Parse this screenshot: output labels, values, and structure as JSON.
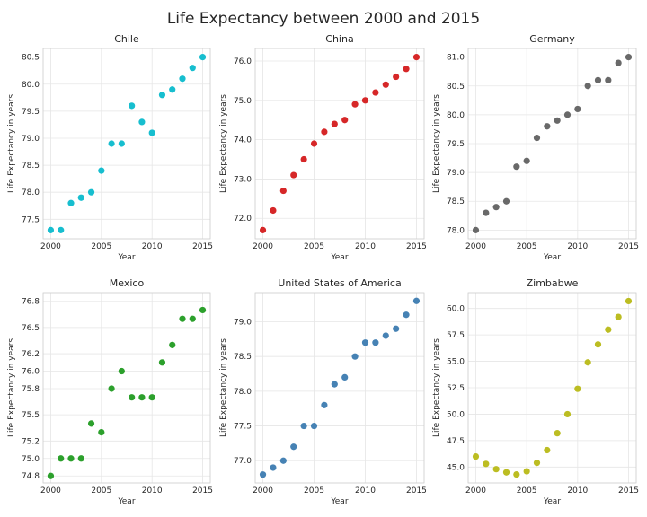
{
  "figure_title": "Life Expectancy between 2000 and 2015",
  "chart_data": [
    {
      "type": "scatter",
      "title": "Chile",
      "xlabel": "Year",
      "ylabel": "Life Expectancy in years",
      "color": "#17becf",
      "x": [
        2000,
        2001,
        2002,
        2003,
        2004,
        2005,
        2006,
        2007,
        2008,
        2009,
        2010,
        2011,
        2012,
        2013,
        2014,
        2015
      ],
      "y": [
        77.3,
        77.3,
        77.8,
        77.9,
        78.0,
        78.4,
        78.9,
        78.9,
        79.6,
        79.3,
        79.1,
        79.8,
        79.9,
        80.1,
        80.3,
        80.5
      ],
      "xlim": [
        1999.25,
        2015.75
      ],
      "ylim": [
        77.14,
        80.66
      ],
      "xticks": [
        2000,
        2005,
        2010,
        2015
      ],
      "yticks": [
        77.5,
        78.0,
        78.5,
        79.0,
        79.5,
        80.0,
        80.5
      ],
      "ytick_labels": [
        "77.5",
        "78.0",
        "78.5",
        "79.0",
        "79.5",
        "80.0",
        "80.5"
      ],
      "grid": true
    },
    {
      "type": "scatter",
      "title": "China",
      "xlabel": "Year",
      "ylabel": "Life Expectancy in years",
      "color": "#d62728",
      "x": [
        2000,
        2001,
        2002,
        2003,
        2004,
        2005,
        2006,
        2007,
        2008,
        2009,
        2010,
        2011,
        2012,
        2013,
        2014,
        2015
      ],
      "y": [
        71.7,
        72.2,
        72.7,
        73.1,
        73.5,
        73.9,
        74.2,
        74.4,
        74.5,
        74.9,
        75.0,
        75.2,
        75.4,
        75.6,
        75.8,
        76.1
      ],
      "xlim": [
        1999.25,
        2015.75
      ],
      "ylim": [
        71.48,
        76.32
      ],
      "xticks": [
        2000,
        2005,
        2010,
        2015
      ],
      "yticks": [
        72.0,
        73.0,
        74.0,
        75.0,
        76.0
      ],
      "ytick_labels": [
        "72.0",
        "73.0",
        "74.0",
        "75.0",
        "76.0"
      ],
      "grid": true
    },
    {
      "type": "scatter",
      "title": "Germany",
      "xlabel": "Year",
      "ylabel": "Life Expectancy in years",
      "color": "#696969",
      "x": [
        2000,
        2001,
        2002,
        2003,
        2004,
        2005,
        2006,
        2007,
        2008,
        2009,
        2010,
        2011,
        2012,
        2013,
        2014,
        2015
      ],
      "y": [
        78.0,
        78.3,
        78.4,
        78.5,
        79.1,
        79.2,
        79.6,
        79.8,
        79.9,
        80.0,
        80.1,
        80.5,
        80.6,
        80.6,
        80.9,
        81.0
      ],
      "xlim": [
        1999.25,
        2015.75
      ],
      "ylim": [
        77.85,
        81.15
      ],
      "xticks": [
        2000,
        2005,
        2010,
        2015
      ],
      "yticks": [
        78.0,
        78.5,
        79.0,
        79.5,
        80.0,
        80.5,
        81.0
      ],
      "ytick_labels": [
        "78.0",
        "78.5",
        "79.0",
        "79.5",
        "80.0",
        "80.5",
        "81.0"
      ],
      "grid": true
    },
    {
      "type": "scatter",
      "title": "Mexico",
      "xlabel": "Year",
      "ylabel": "Life Expectancy in years",
      "color": "#2ca02c",
      "x": [
        2000,
        2001,
        2002,
        2003,
        2004,
        2005,
        2006,
        2007,
        2008,
        2009,
        2010,
        2011,
        2012,
        2013,
        2014,
        2015
      ],
      "y": [
        74.8,
        75.0,
        75.0,
        75.0,
        75.4,
        75.3,
        75.8,
        76.0,
        75.7,
        75.7,
        75.7,
        76.1,
        76.3,
        76.6,
        76.6,
        76.7
      ],
      "xlim": [
        1999.25,
        2015.75
      ],
      "ylim": [
        74.72,
        76.9
      ],
      "xticks": [
        2000,
        2005,
        2010,
        2015
      ],
      "yticks": [
        74.8,
        75.0,
        75.2,
        75.5,
        75.8,
        76.0,
        76.2,
        76.5,
        76.8
      ],
      "ytick_labels": [
        "74.8",
        "75.0",
        "75.2",
        "75.5",
        "75.8",
        "76.0",
        "76.2",
        "76.5",
        "76.8"
      ],
      "grid": true
    },
    {
      "type": "scatter",
      "title": "United States of America",
      "xlabel": "Year",
      "ylabel": "Life Expectancy in years",
      "color": "#4682b4",
      "x": [
        2000,
        2001,
        2002,
        2003,
        2004,
        2005,
        2006,
        2007,
        2008,
        2009,
        2010,
        2011,
        2012,
        2013,
        2014,
        2015
      ],
      "y": [
        76.8,
        76.9,
        77.0,
        77.2,
        77.5,
        77.5,
        77.8,
        78.1,
        78.2,
        78.5,
        78.7,
        78.7,
        78.8,
        78.9,
        79.1,
        79.3
      ],
      "xlim": [
        1999.25,
        2015.75
      ],
      "ylim": [
        76.68,
        79.42
      ],
      "xticks": [
        2000,
        2005,
        2010,
        2015
      ],
      "yticks": [
        77.0,
        77.5,
        78.0,
        78.5,
        79.0
      ],
      "ytick_labels": [
        "77.0",
        "77.5",
        "78.0",
        "78.5",
        "79.0"
      ],
      "grid": true
    },
    {
      "type": "scatter",
      "title": "Zimbabwe",
      "xlabel": "Year",
      "ylabel": "Life Expectancy in years",
      "color": "#bcbd22",
      "x": [
        2000,
        2001,
        2002,
        2003,
        2004,
        2005,
        2006,
        2007,
        2008,
        2009,
        2010,
        2011,
        2012,
        2013,
        2014,
        2015
      ],
      "y": [
        46.0,
        45.3,
        44.8,
        44.5,
        44.3,
        44.6,
        45.4,
        46.6,
        48.2,
        50.0,
        52.4,
        54.9,
        56.6,
        58.0,
        59.2,
        60.7
      ],
      "xlim": [
        1999.25,
        2015.75
      ],
      "ylim": [
        43.5,
        61.5
      ],
      "xticks": [
        2000,
        2005,
        2010,
        2015
      ],
      "yticks": [
        45.0,
        47.5,
        50.0,
        52.5,
        55.0,
        57.5,
        60.0
      ],
      "ytick_labels": [
        "45.0",
        "47.5",
        "50.0",
        "52.5",
        "55.0",
        "57.5",
        "60.0"
      ],
      "grid": true
    }
  ]
}
